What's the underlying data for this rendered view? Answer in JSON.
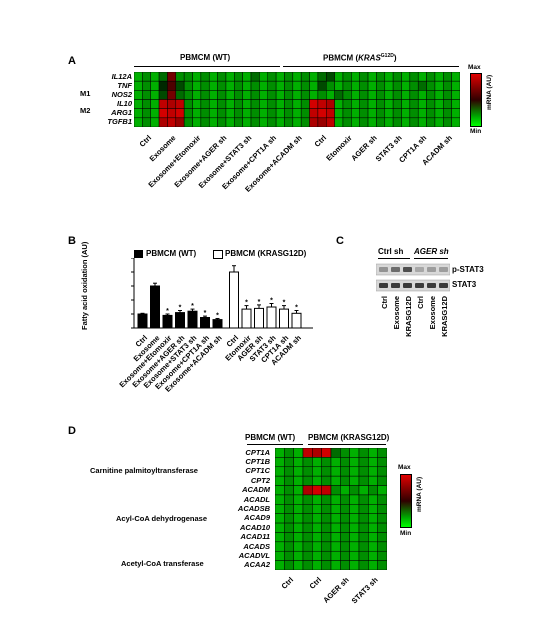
{
  "panels": {
    "a": "A",
    "b": "B",
    "c": "C",
    "d": "D"
  },
  "heatmap_a": {
    "header_wt": "PBMCM (WT)",
    "header_kras_prefix": "PBMCM (",
    "header_kras_italic": "KRAS",
    "header_kras_sup": "G12D",
    "header_kras_suffix": ")",
    "group_m1": "M1",
    "group_m2": "M2",
    "rows": [
      "IL12A",
      "TNF",
      "NOS2",
      "IL10",
      "ARG1",
      "TGFB1"
    ],
    "conditions": [
      "Ctrl",
      "Exosome",
      "Exosome+Etomoxir",
      "Exosome+AGER sh",
      "Exosome+STAT3 sh",
      "Exosome+CPT1A sh",
      "Exosome+ACADM sh",
      "Ctrl",
      "Etomoxir",
      "AGER sh",
      "STAT3 sh",
      "CPT1A sh",
      "ACADM sh"
    ],
    "legend_max": "Max",
    "legend_min": "Min",
    "legend_unit": "mRNA (AU)"
  },
  "bar_b": {
    "legend_wt": "PBMCM (WT)",
    "legend_kras": "PBMCM (KRASG12D)",
    "ylabel": "Fatty acid oxidation (AU)"
  },
  "blot_c": {
    "col_ctrl_sh": "Ctrl sh",
    "col_ager_sh": "AGER sh",
    "band_pstat3": "p-STAT3",
    "band_stat3": "STAT3",
    "lanes": [
      "Ctrl",
      "Exosome",
      "KRASG12D",
      "Ctrl",
      "Exosome",
      "KRASG12D"
    ]
  },
  "heatmap_d": {
    "header_wt": "PBMCM (WT)",
    "header_kras": "PBMCM (KRASG12D)",
    "group_cpt": "Carnitine palmitoyltransferase",
    "group_acad": "Acyl-CoA dehydrogenase",
    "group_acaa": "Acetyl-CoA transferase",
    "rows": [
      "CPT1A",
      "CPT1B",
      "CPT1C",
      "CPT2",
      "ACADM",
      "ACADL",
      "ACADSB",
      "ACAD9",
      "ACAD10",
      "ACAD11",
      "ACADS",
      "ACADVL",
      "ACAA2"
    ],
    "conditions": [
      "Ctrl",
      "Ctrl",
      "AGER sh",
      "STAT3 sh"
    ],
    "legend_max": "Max",
    "legend_min": "Min",
    "legend_unit": "mRNA (AU)"
  },
  "chart_data": [
    {
      "type": "heatmap",
      "panel": "A",
      "rows": [
        "IL12A",
        "TNF",
        "NOS2",
        "IL10",
        "ARG1",
        "TGFB1"
      ],
      "columns": [
        "Ctrl",
        "Exosome",
        "Exosome+Etomoxir",
        "Exosome+AGER sh",
        "Exosome+STAT3 sh",
        "Exosome+CPT1A sh",
        "Exosome+ACADM sh",
        "Ctrl",
        "Etomoxir",
        "AGER sh",
        "STAT3 sh",
        "CPT1A sh",
        "ACADM sh"
      ],
      "replicates_per_column": 3,
      "values": [
        [
          0.1,
          0.2,
          0.1,
          0.3,
          0.7,
          0.2,
          0.2,
          0.1,
          0.2,
          0.1,
          0.2,
          0.1,
          0.2,
          0.1,
          0.3,
          0.1,
          0.2,
          0.1,
          0.2,
          0.1,
          0.2,
          0.1,
          0.3,
          0.4,
          0.1,
          0.2,
          0.1,
          0.2,
          0.1,
          0.2,
          0.1,
          0.2,
          0.1,
          0.2,
          0.1,
          0.2,
          0.1,
          0.2,
          0.1
        ],
        [
          0.1,
          0.2,
          0.1,
          0.5,
          0.6,
          0.4,
          0.2,
          0.1,
          0.2,
          0.1,
          0.2,
          0.1,
          0.2,
          0.1,
          0.2,
          0.1,
          0.2,
          0.1,
          0.2,
          0.1,
          0.2,
          0.1,
          0.4,
          0.2,
          0.1,
          0.2,
          0.1,
          0.2,
          0.1,
          0.2,
          0.1,
          0.2,
          0.1,
          0.2,
          0.3,
          0.2,
          0.1,
          0.2,
          0.1
        ],
        [
          0.1,
          0.2,
          0.1,
          0.4,
          0.7,
          0.3,
          0.2,
          0.1,
          0.2,
          0.1,
          0.2,
          0.1,
          0.2,
          0.1,
          0.2,
          0.1,
          0.2,
          0.1,
          0.2,
          0.1,
          0.2,
          0.1,
          0.2,
          0.1,
          0.3,
          0.2,
          0.1,
          0.2,
          0.1,
          0.2,
          0.1,
          0.2,
          0.1,
          0.2,
          0.1,
          0.2,
          0.1,
          0.2,
          0.1
        ],
        [
          0.1,
          0.2,
          0.1,
          0.9,
          0.85,
          0.9,
          0.2,
          0.1,
          0.2,
          0.1,
          0.2,
          0.1,
          0.2,
          0.1,
          0.2,
          0.1,
          0.2,
          0.1,
          0.2,
          0.1,
          0.2,
          0.95,
          0.9,
          0.85,
          0.1,
          0.2,
          0.1,
          0.2,
          0.1,
          0.2,
          0.1,
          0.2,
          0.1,
          0.2,
          0.1,
          0.2,
          0.1,
          0.2,
          0.1
        ],
        [
          0.1,
          0.2,
          0.1,
          0.95,
          0.9,
          0.95,
          0.2,
          0.1,
          0.2,
          0.1,
          0.2,
          0.1,
          0.2,
          0.1,
          0.2,
          0.1,
          0.2,
          0.1,
          0.2,
          0.1,
          0.2,
          0.9,
          0.95,
          0.9,
          0.1,
          0.2,
          0.1,
          0.2,
          0.1,
          0.2,
          0.1,
          0.2,
          0.1,
          0.2,
          0.1,
          0.2,
          0.1,
          0.2,
          0.1
        ],
        [
          0.1,
          0.2,
          0.1,
          0.85,
          0.9,
          0.8,
          0.2,
          0.1,
          0.2,
          0.1,
          0.2,
          0.1,
          0.2,
          0.1,
          0.2,
          0.1,
          0.2,
          0.1,
          0.2,
          0.1,
          0.2,
          0.85,
          0.8,
          0.9,
          0.1,
          0.2,
          0.1,
          0.2,
          0.1,
          0.2,
          0.1,
          0.2,
          0.1,
          0.2,
          0.1,
          0.2,
          0.1,
          0.2,
          0.1
        ]
      ]
    },
    {
      "type": "bar",
      "panel": "B",
      "categories": [
        "Ctrl",
        "Exosome",
        "Exosome+Etomoxir",
        "Exosome+AGER sh",
        "Exosome+STAT3 sh",
        "Exosome+CPT1A sh",
        "Exosome+ACADM sh",
        "Ctrl",
        "Etomoxir",
        "AGER sh",
        "STAT3 sh",
        "CPT1A sh",
        "ACADM sh"
      ],
      "series": [
        {
          "name": "PBMCM (WT)",
          "values": [
            1.0,
            3.0,
            0.9,
            1.1,
            1.2,
            0.75,
            0.6,
            null,
            null,
            null,
            null,
            null,
            null
          ],
          "errors": [
            0.05,
            0.2,
            0.1,
            0.15,
            0.15,
            0.1,
            0.08,
            null,
            null,
            null,
            null,
            null,
            null
          ]
        },
        {
          "name": "PBMCM (KRASG12D)",
          "values": [
            null,
            null,
            null,
            null,
            null,
            null,
            null,
            4.0,
            1.35,
            1.4,
            1.5,
            1.35,
            1.05
          ],
          "errors": [
            null,
            null,
            null,
            null,
            null,
            null,
            null,
            0.45,
            0.25,
            0.25,
            0.25,
            0.25,
            0.2
          ]
        }
      ],
      "significant": [
        false,
        false,
        true,
        true,
        true,
        true,
        true,
        false,
        true,
        true,
        true,
        true,
        true
      ],
      "ylim": [
        0,
        5
      ],
      "ylabel": "Fatty acid oxidation (AU)"
    },
    {
      "type": "heatmap",
      "panel": "D",
      "rows": [
        "CPT1A",
        "CPT1B",
        "CPT1C",
        "CPT2",
        "ACADM",
        "ACADL",
        "ACADSB",
        "ACAD9",
        "ACAD10",
        "ACAD11",
        "ACADS",
        "ACADVL",
        "ACAA2"
      ],
      "columns": [
        "Ctrl",
        "Ctrl",
        "AGER sh",
        "STAT3 sh"
      ],
      "replicates_per_column": 3,
      "values": [
        [
          0.1,
          0.2,
          0.1,
          0.9,
          0.85,
          0.95,
          0.3,
          0.2,
          0.1,
          0.2,
          0.1,
          0.2
        ],
        [
          0.1,
          0.2,
          0.1,
          0.2,
          0.1,
          0.2,
          0.1,
          0.2,
          0.1,
          0.2,
          0.1,
          0.2
        ],
        [
          0.1,
          0.2,
          0.1,
          0.2,
          0.1,
          0.2,
          0.1,
          0.2,
          0.1,
          0.2,
          0.1,
          0.2
        ],
        [
          0.1,
          0.2,
          0.1,
          0.2,
          0.1,
          0.2,
          0.1,
          0.2,
          0.1,
          0.2,
          0.1,
          0.2
        ],
        [
          0.1,
          0.2,
          0.1,
          0.85,
          0.95,
          0.9,
          0.2,
          0.1,
          0.2,
          0.1,
          0.2,
          0.1
        ],
        [
          0.1,
          0.2,
          0.1,
          0.2,
          0.1,
          0.2,
          0.1,
          0.2,
          0.1,
          0.2,
          0.1,
          0.2
        ],
        [
          0.1,
          0.2,
          0.1,
          0.2,
          0.1,
          0.2,
          0.1,
          0.2,
          0.1,
          0.2,
          0.1,
          0.2
        ],
        [
          0.1,
          0.2,
          0.1,
          0.2,
          0.1,
          0.2,
          0.1,
          0.2,
          0.1,
          0.2,
          0.1,
          0.2
        ],
        [
          0.1,
          0.2,
          0.1,
          0.2,
          0.1,
          0.2,
          0.1,
          0.2,
          0.1,
          0.2,
          0.1,
          0.2
        ],
        [
          0.1,
          0.2,
          0.1,
          0.2,
          0.1,
          0.2,
          0.1,
          0.2,
          0.1,
          0.2,
          0.1,
          0.2
        ],
        [
          0.1,
          0.2,
          0.1,
          0.2,
          0.1,
          0.2,
          0.1,
          0.2,
          0.1,
          0.2,
          0.1,
          0.2
        ],
        [
          0.1,
          0.2,
          0.1,
          0.2,
          0.1,
          0.2,
          0.1,
          0.2,
          0.1,
          0.2,
          0.1,
          0.2
        ],
        [
          0.1,
          0.2,
          0.1,
          0.2,
          0.1,
          0.2,
          0.1,
          0.2,
          0.1,
          0.2,
          0.1,
          0.2
        ]
      ]
    }
  ]
}
